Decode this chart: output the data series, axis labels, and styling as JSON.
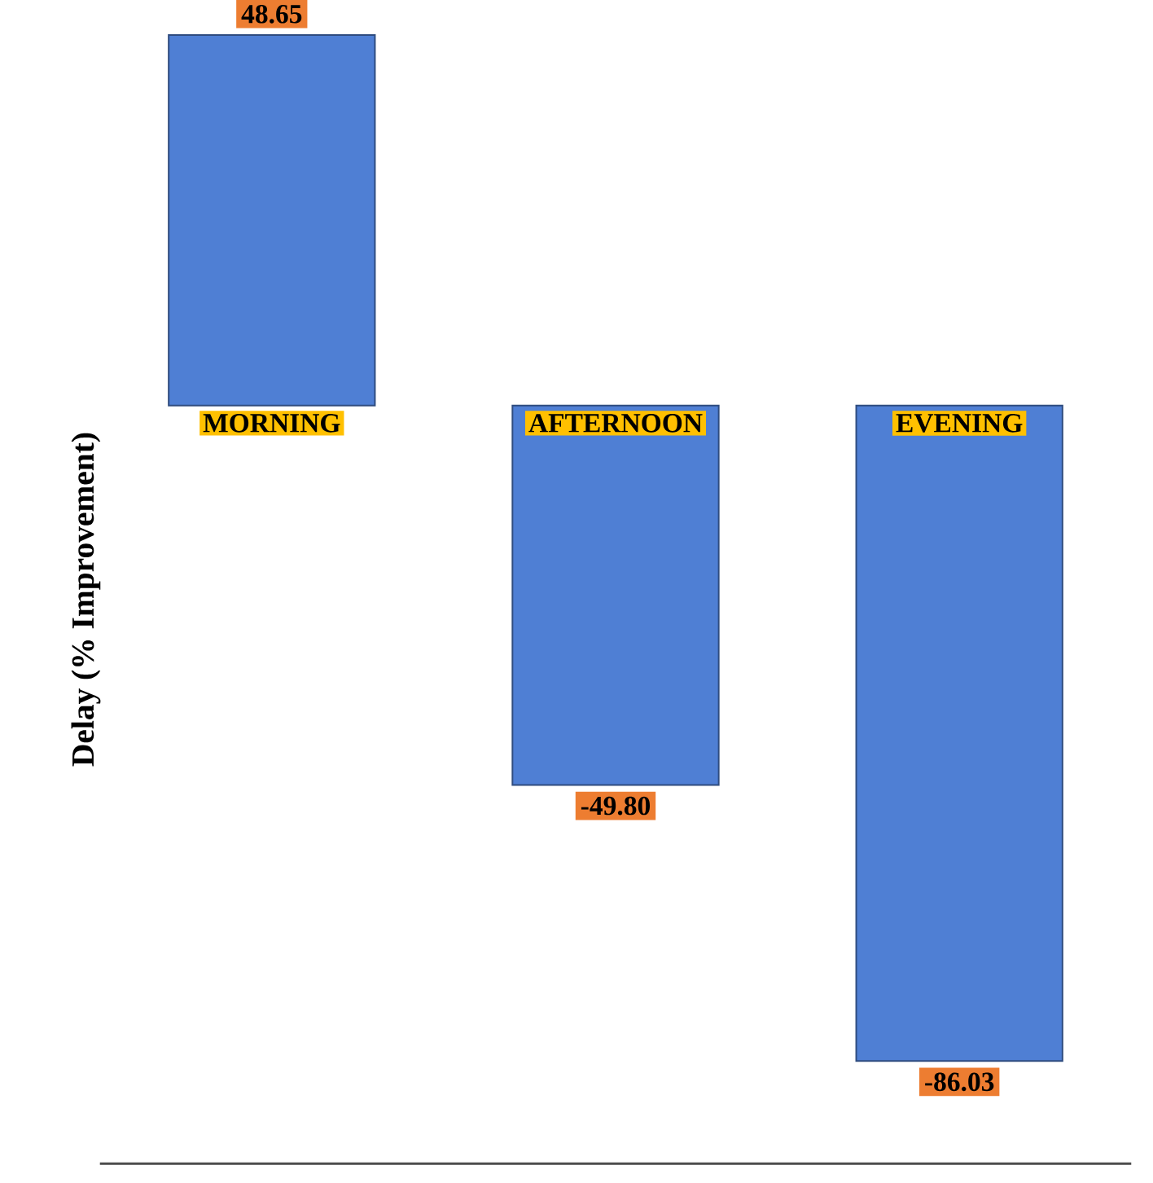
{
  "chart_data": {
    "type": "bar",
    "ylabel": "Delay (% Improvement)",
    "categories": [
      "MORNING",
      "AFTERNOON",
      "EVENING"
    ],
    "values": [
      48.65,
      -49.8,
      -86.03
    ],
    "value_labels": [
      "48.65",
      "-49.80",
      "-86.03"
    ],
    "color": "#4f7fd4"
  }
}
